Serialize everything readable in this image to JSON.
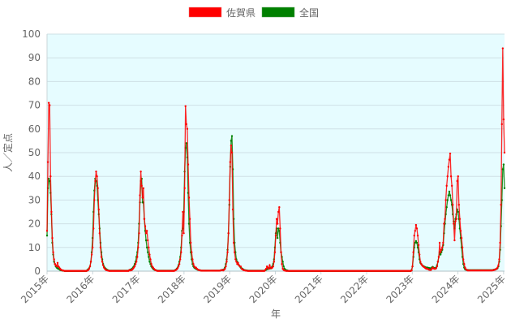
{
  "chart_data": {
    "type": "line",
    "title": "",
    "xlabel": "年",
    "ylabel": "人／定点",
    "ylim": [
      0,
      100
    ],
    "yticks": [
      "0",
      "10",
      "20",
      "30",
      "40",
      "50",
      "60",
      "70",
      "80",
      "90",
      "100"
    ],
    "xticks": [
      "2015年",
      "2016年",
      "2017年",
      "2018年",
      "2019年",
      "2020年",
      "2021年",
      "2022年",
      "2023年",
      "2024年",
      "2025年"
    ],
    "x_start_year": 2015,
    "x_step": "weekly",
    "grid": true,
    "legend_position": "top-center",
    "background": "#e6fcff",
    "series": [
      {
        "name": "佐賀県",
        "color": "#ff0000",
        "segments": [
          [
            17,
            46,
            71,
            70,
            40,
            25,
            14,
            8,
            5,
            3,
            2.5,
            2,
            3.5,
            2,
            1.5,
            1,
            0.6,
            0.4,
            0.3,
            0.2
          ],
          {
            "fill": 0.1,
            "count": 26
          },
          [
            0.3,
            0.5,
            1,
            2,
            4,
            7
          ],
          [
            10,
            18,
            30,
            38,
            42,
            40,
            35,
            26,
            16,
            10,
            6,
            4,
            2.5,
            1.5,
            1,
            0.6,
            0.4,
            0.3,
            0.2
          ],
          {
            "fill": 0.1,
            "count": 23
          },
          [
            0.5,
            0.3,
            0.4,
            0.6,
            1,
            1.5,
            2,
            3,
            4,
            6
          ],
          [
            10,
            16,
            32,
            42,
            36,
            31,
            35,
            22,
            19,
            16,
            17,
            13,
            10,
            7,
            5,
            3,
            2,
            1.5,
            1,
            0.6,
            0.4,
            0.2
          ],
          {
            "fill": 0.1,
            "count": 20
          },
          [
            0.3,
            0.5,
            0.8,
            1.2,
            2,
            3,
            5,
            8,
            15,
            25
          ],
          [
            16,
            35,
            69.6,
            62,
            60,
            45,
            31,
            22,
            12,
            8,
            5,
            3,
            2,
            1.5,
            1.5,
            1,
            0.7,
            0.5,
            0.4,
            0.3
          ],
          {
            "fill": 0.2,
            "count": 22
          },
          [
            0.3,
            0.5,
            0.4,
            0.3,
            0.6,
            1,
            2,
            4,
            8,
            16
          ],
          [
            30,
            46,
            53,
            50,
            26,
            12,
            8,
            5,
            4,
            3,
            3.5,
            2.5,
            2,
            2,
            1,
            0.8,
            0.5,
            0.4,
            0.3,
            0.2,
            0.2,
            0.1
          ],
          {
            "fill": 0.1,
            "count": 19
          },
          [
            0.5,
            1,
            2,
            1.5,
            1,
            2.5,
            1.5,
            1.2,
            1.5,
            2,
            4
          ],
          [
            8,
            15,
            22,
            20,
            25,
            27,
            18,
            8,
            3,
            1,
            0.5,
            0.3,
            0.2,
            0.1,
            0.1,
            0.1
          ],
          {
            "fill": 0.1,
            "count": 140
          },
          [
            0.3,
            2,
            8,
            15,
            17,
            19.5,
            18,
            15,
            11,
            7,
            4,
            3,
            2.5,
            2,
            1.8,
            1.5,
            1.2,
            1,
            1,
            0.8,
            0.6,
            0.5,
            0.5,
            1,
            1.5,
            1.2,
            1,
            1,
            1.2,
            2,
            4,
            6
          ],
          [
            12,
            8,
            9,
            10,
            12,
            20,
            22,
            30,
            36,
            40,
            44,
            47,
            49.6,
            40,
            36,
            28,
            20,
            13,
            21,
            22,
            38,
            40,
            28,
            22,
            17,
            14,
            10,
            5,
            3,
            1.5,
            0.8,
            0.5,
            0.3
          ],
          {
            "fill": 0.3,
            "count": 28
          },
          [
            0.4,
            0.5,
            0.6,
            0.8,
            1,
            1.5,
            2.5,
            5,
            12,
            28,
            62,
            94,
            64,
            50
          ]
        ]
      },
      {
        "name": "全国",
        "color": "#008000",
        "segments": [
          [
            15,
            35,
            39,
            38,
            33,
            24,
            12,
            7,
            4,
            3,
            2,
            1.5,
            1.2,
            1,
            0.8,
            0.5,
            0.4,
            0.3,
            0.2,
            0.2
          ],
          {
            "fill": 0.1,
            "count": 26
          },
          [
            0.5,
            0.8,
            1.2,
            2,
            4,
            8
          ],
          [
            14,
            25,
            34,
            39,
            38,
            36,
            30,
            24,
            18,
            12,
            8,
            5,
            3,
            2,
            1.4,
            1,
            0.7,
            0.5,
            0.3
          ],
          {
            "fill": 0.2,
            "count": 23
          },
          [
            0.5,
            0.6,
            0.8,
            1,
            1.5,
            2,
            3,
            4,
            6,
            8
          ],
          [
            12,
            20,
            29,
            38,
            39,
            29,
            29,
            22,
            17,
            13,
            10,
            8,
            6,
            4,
            3,
            2,
            1.5,
            1,
            0.7,
            0.5,
            0.4,
            0.3
          ],
          {
            "fill": 0.2,
            "count": 20
          },
          [
            0.4,
            0.6,
            1,
            1.5,
            2.5,
            4,
            6,
            10,
            17,
            18
          ],
          [
            25,
            42,
            52,
            54,
            48,
            33,
            20,
            12,
            8,
            5,
            3,
            2,
            1.5,
            1.2,
            1,
            0.8,
            0.6,
            0.5,
            0.4,
            0.3
          ],
          {
            "fill": 0.2,
            "count": 22
          },
          [
            0.3,
            0.4,
            0.5,
            0.6,
            0.8,
            1.5,
            3,
            5,
            9,
            16
          ],
          [
            28,
            44,
            55,
            57,
            43,
            22,
            12,
            8,
            5,
            4,
            3,
            2.5,
            2,
            1.5,
            1.2,
            1,
            0.7,
            0.5,
            0.4,
            0.3,
            0.3,
            0.2
          ],
          {
            "fill": 0.2,
            "count": 19
          },
          [
            0.4,
            0.6,
            0.8,
            1,
            1,
            1.2,
            1.2,
            1.5,
            2,
            3,
            5
          ],
          [
            10,
            16,
            18,
            14,
            18,
            17,
            12,
            8,
            6,
            4,
            2,
            1,
            0.6,
            0.4,
            0.3,
            0.2
          ],
          {
            "fill": 0.1,
            "count": 140
          },
          [
            0.5,
            2,
            6,
            10,
            12,
            12.7,
            12,
            10,
            8,
            5,
            3.5,
            3,
            2.5,
            2.2,
            2,
            1.8,
            1.6,
            1.5,
            1.5,
            1.4,
            1.3,
            1.2,
            1.2,
            1.5,
            1.8,
            1.5,
            1.3,
            1.3,
            1.5,
            2.5,
            4,
            6
          ],
          [
            8,
            7,
            8,
            9,
            11,
            16,
            20,
            24,
            27,
            30,
            32,
            33.6,
            32,
            30,
            28,
            24,
            21,
            18,
            22,
            24,
            26,
            25,
            22,
            18,
            14,
            10,
            6,
            3,
            1.5,
            0.8,
            0.6,
            0.5,
            0.5
          ],
          {
            "fill": 0.4,
            "count": 28
          },
          [
            0.5,
            0.6,
            0.7,
            0.8,
            1,
            1.2,
            2,
            4,
            9,
            19,
            30,
            43,
            45,
            35
          ]
        ]
      }
    ]
  }
}
